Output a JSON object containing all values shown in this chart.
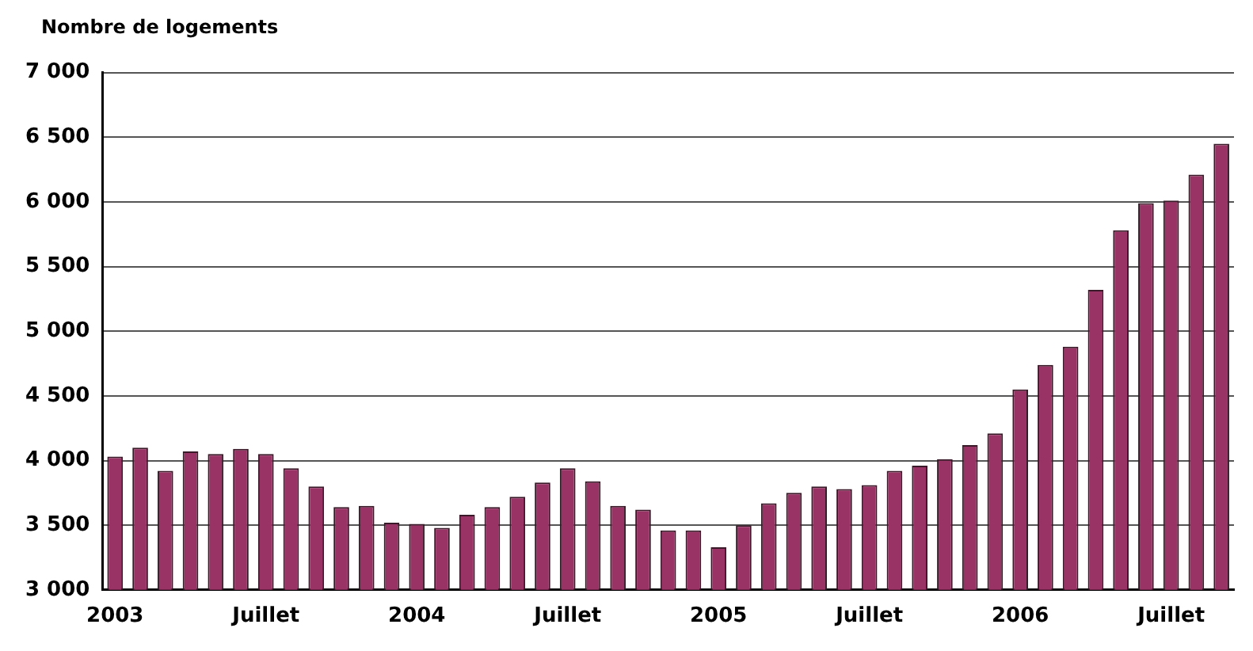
{
  "chart_data": {
    "type": "bar",
    "ylabel": "Nombre de logements",
    "categories": [
      "2003",
      null,
      null,
      null,
      null,
      null,
      "Juillet",
      null,
      null,
      null,
      null,
      null,
      "2004",
      null,
      null,
      null,
      null,
      null,
      "Juillet",
      null,
      null,
      null,
      null,
      null,
      "2005",
      null,
      null,
      null,
      null,
      null,
      "Juillet",
      null,
      null,
      null,
      null,
      null,
      "2006",
      null,
      null,
      null,
      null,
      null,
      "Juillet",
      null,
      null
    ],
    "values": [
      4030,
      4100,
      3920,
      4070,
      4050,
      4090,
      4050,
      3940,
      3800,
      3640,
      3650,
      3520,
      3510,
      3480,
      3580,
      3640,
      3720,
      3830,
      3940,
      3840,
      3650,
      3620,
      3460,
      3460,
      3330,
      3500,
      3670,
      3750,
      3800,
      3780,
      3810,
      3920,
      3960,
      4010,
      4120,
      4210,
      4550,
      4740,
      4880,
      5320,
      5780,
      5990,
      6010,
      6210,
      6450
    ],
    "color": "#993366",
    "ylim": [
      3000,
      7000
    ],
    "yticks": [
      {
        "value": 3000,
        "label": "3 000"
      },
      {
        "value": 3500,
        "label": "3 500"
      },
      {
        "value": 4000,
        "label": "4 000"
      },
      {
        "value": 4500,
        "label": "4 500"
      },
      {
        "value": 5000,
        "label": "5 000"
      },
      {
        "value": 5500,
        "label": "5 500"
      },
      {
        "value": 6000,
        "label": "6 000"
      },
      {
        "value": 6500,
        "label": "6 500"
      },
      {
        "value": 7000,
        "label": "7 000"
      }
    ],
    "grid": "y",
    "legend": false
  }
}
